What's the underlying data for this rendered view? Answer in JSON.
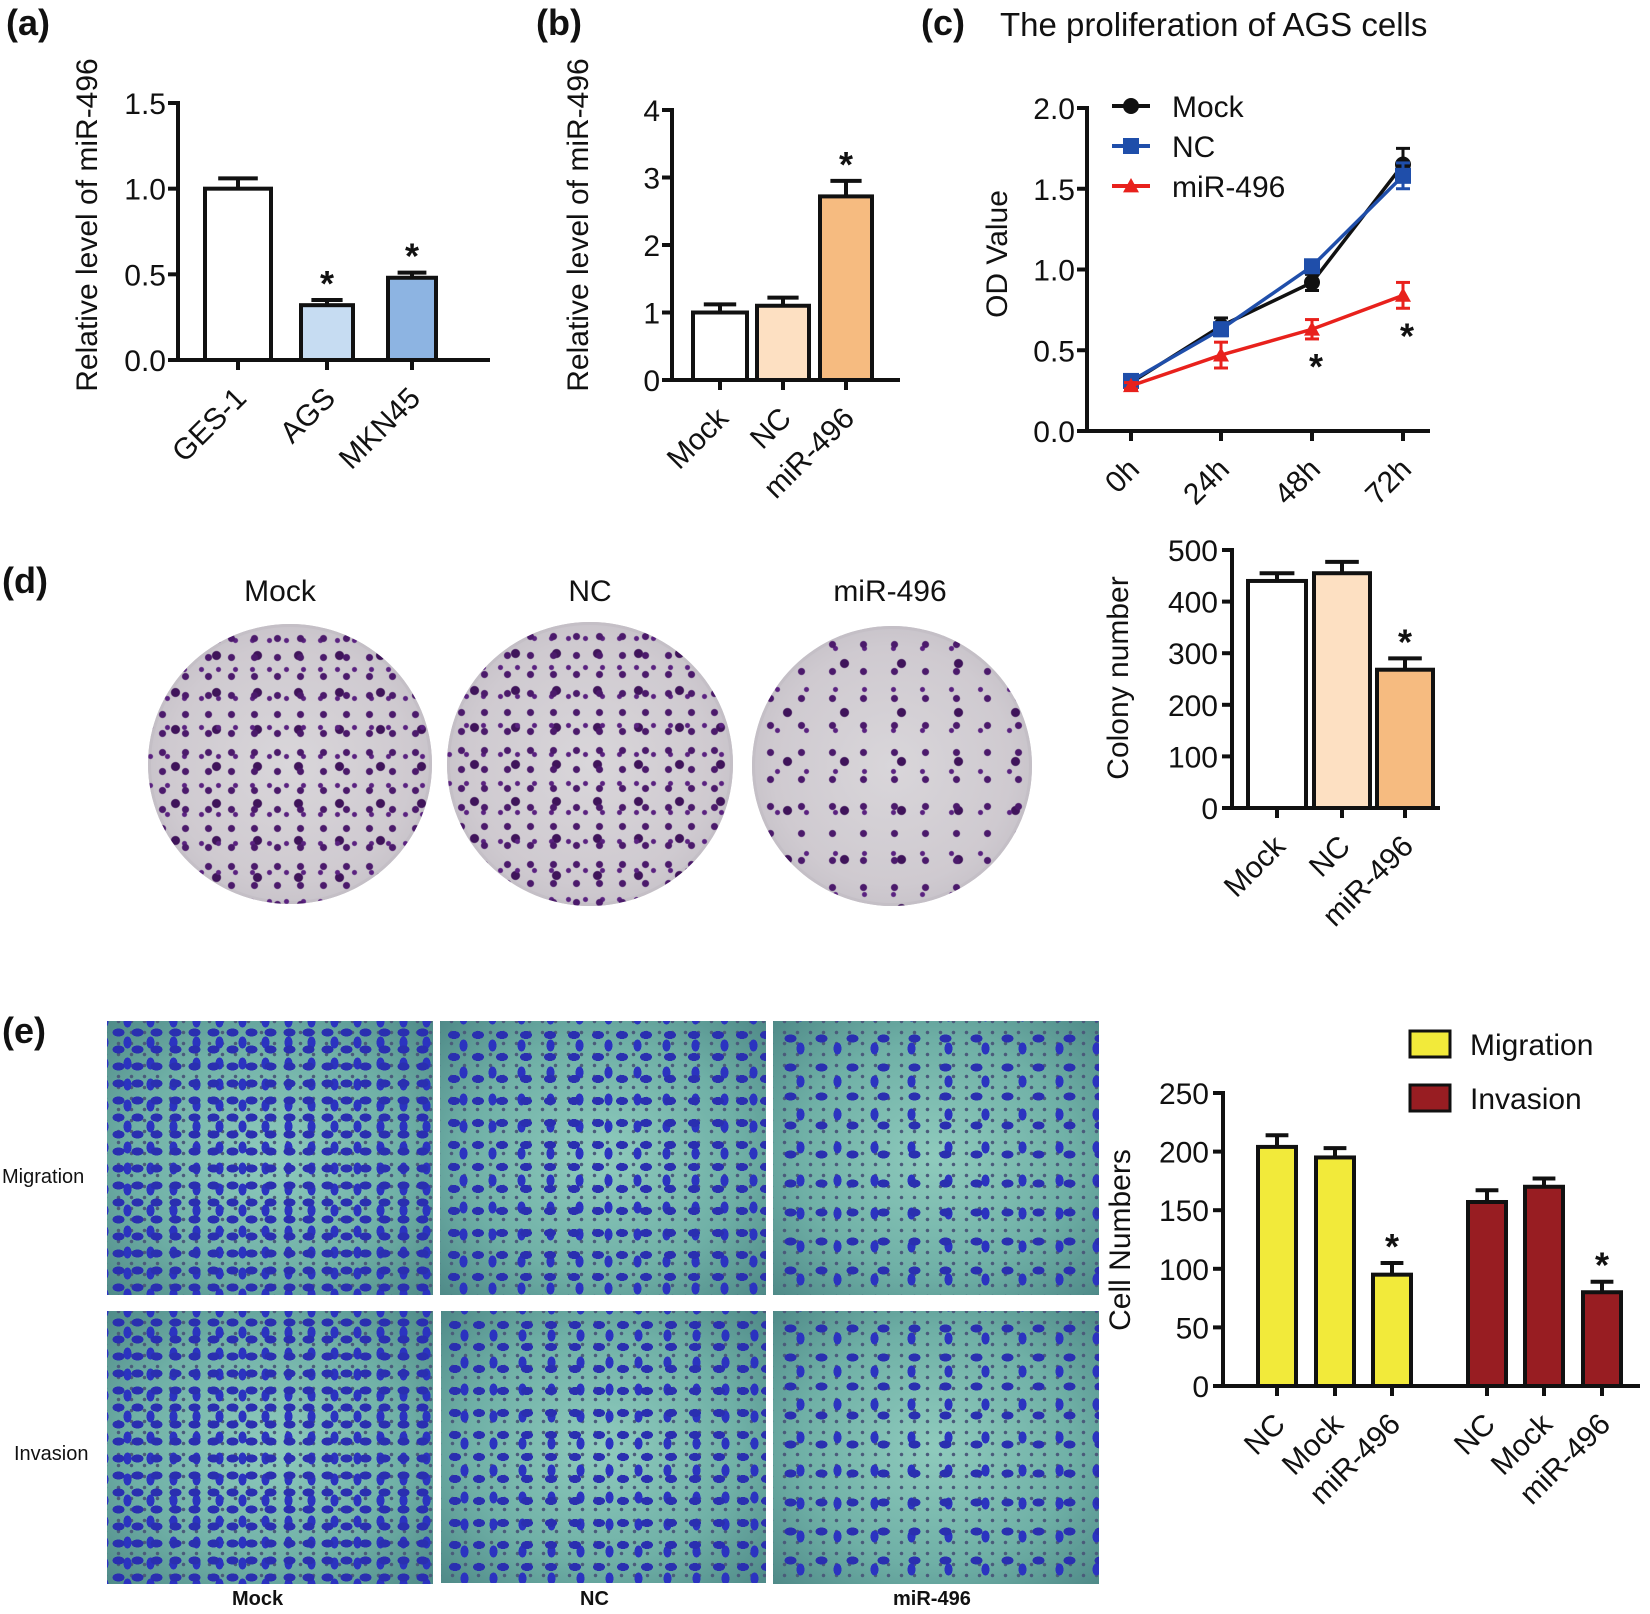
{
  "panels": {
    "a": {
      "label": "(a)"
    },
    "b": {
      "label": "(b)"
    },
    "c": {
      "label": "(c)",
      "title": "The proliferation of AGS cells"
    },
    "d": {
      "label": "(d)",
      "photo_labels": [
        "Mock",
        "NC",
        "miR-496"
      ]
    },
    "e": {
      "label": "(e)",
      "row_labels": [
        "Migration",
        "Invasion"
      ],
      "column_labels": [
        "Mock",
        "NC",
        "miR-496"
      ]
    }
  },
  "chart_data": [
    {
      "id": "a",
      "type": "bar",
      "title": "",
      "xlabel": "",
      "ylabel": "Relative level of miR-496",
      "ylim": [
        0,
        1.5
      ],
      "yticks": [
        "0.0",
        "0.5",
        "1.0",
        "1.5"
      ],
      "categories": [
        "GES-1",
        "AGS",
        "MKN45"
      ],
      "values": [
        1.0,
        0.32,
        0.48
      ],
      "errors": [
        0.06,
        0.03,
        0.03
      ],
      "significant": [
        false,
        true,
        true
      ],
      "colors": [
        "#ffffff",
        "#c6dcf2",
        "#8db4e2"
      ],
      "grid": false
    },
    {
      "id": "b",
      "type": "bar",
      "title": "",
      "xlabel": "",
      "ylabel": "Relative level of miR-496",
      "ylim": [
        0,
        4
      ],
      "yticks": [
        "0",
        "1",
        "2",
        "3",
        "4"
      ],
      "categories": [
        "Mock",
        "NC",
        "miR-496"
      ],
      "values": [
        1.0,
        1.1,
        2.72
      ],
      "errors": [
        0.12,
        0.12,
        0.23
      ],
      "significant": [
        false,
        false,
        true
      ],
      "colors": [
        "#ffffff",
        "#fde0c2",
        "#f6bb80"
      ],
      "grid": false
    },
    {
      "id": "c",
      "type": "line",
      "title": "The proliferation of AGS cells",
      "xlabel": "",
      "ylabel": "OD Value",
      "ylim": [
        0,
        2.0
      ],
      "yticks": [
        "0.0",
        "0.5",
        "1.0",
        "1.5",
        "2.0"
      ],
      "x": [
        "0h",
        "24h",
        "48h",
        "72h"
      ],
      "series": [
        {
          "name": "Mock",
          "marker": "circle",
          "color": "#111111",
          "values": [
            0.3,
            0.65,
            0.92,
            1.65
          ],
          "errors": [
            0.02,
            0.05,
            0.05,
            0.1
          ]
        },
        {
          "name": "NC",
          "marker": "square",
          "color": "#1f4eaa",
          "values": [
            0.31,
            0.63,
            1.02,
            1.58
          ],
          "errors": [
            0.02,
            0.04,
            0.03,
            0.08
          ]
        },
        {
          "name": "miR-496",
          "marker": "triangle",
          "color": "#e8211c",
          "values": [
            0.28,
            0.47,
            0.63,
            0.84
          ],
          "errors": [
            0.02,
            0.08,
            0.06,
            0.08
          ]
        }
      ],
      "significant_at": [
        "48h",
        "72h"
      ],
      "legend_position": "upper-left",
      "grid": false
    },
    {
      "id": "d",
      "type": "bar",
      "title": "",
      "xlabel": "",
      "ylabel": "Colony number",
      "ylim": [
        0,
        500
      ],
      "yticks": [
        "0",
        "100",
        "200",
        "300",
        "400",
        "500"
      ],
      "categories": [
        "Mock",
        "NC",
        "miR-496"
      ],
      "values": [
        440,
        455,
        268
      ],
      "errors": [
        15,
        22,
        22
      ],
      "significant": [
        false,
        false,
        true
      ],
      "colors": [
        "#ffffff",
        "#fde0c2",
        "#f6bb80"
      ],
      "grid": false
    },
    {
      "id": "e",
      "type": "bar",
      "title": "",
      "xlabel": "",
      "ylabel": "Cell Numbers",
      "ylim": [
        0,
        250
      ],
      "yticks": [
        "0",
        "50",
        "100",
        "150",
        "200",
        "250"
      ],
      "groups": [
        "Migration",
        "Invasion"
      ],
      "categories": [
        "NC",
        "Mock",
        "miR-496"
      ],
      "series": [
        {
          "name": "Migration",
          "color": "#f2ea3a",
          "values": [
            204,
            195,
            95
          ],
          "errors": [
            10,
            8,
            10
          ],
          "significant": [
            false,
            false,
            true
          ]
        },
        {
          "name": "Invasion",
          "color": "#981d22",
          "values": [
            157,
            170,
            80
          ],
          "errors": [
            10,
            7,
            9
          ],
          "significant": [
            false,
            false,
            true
          ]
        }
      ],
      "legend_position": "upper-right",
      "grid": false
    }
  ]
}
